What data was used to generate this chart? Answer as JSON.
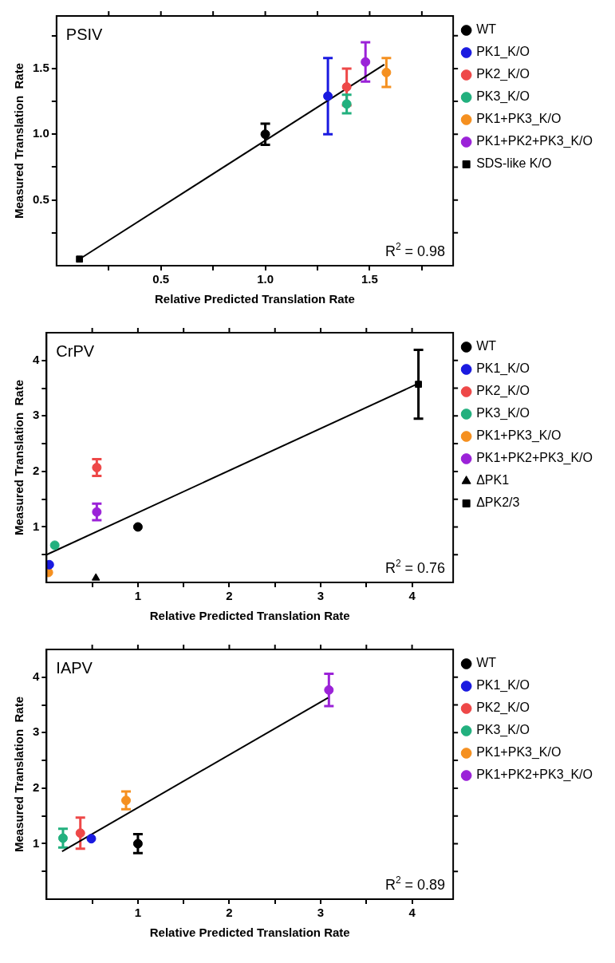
{
  "chart_data": [
    {
      "type": "scatter",
      "title": "PSIV",
      "xlabel": "Relative Predicted Translation Rate",
      "ylabel": "Measured Translation  Rate",
      "annotations": [
        "R$^{2}$ = 0.98"
      ],
      "legend": "right",
      "marker": "circle",
      "grid": false,
      "xlim": [
        0,
        1.9
      ],
      "xticks": [
        {
          "value": 0.25,
          "label": null
        },
        {
          "value": 0.5,
          "label": "0.5"
        },
        {
          "value": 0.75,
          "label": null
        },
        {
          "value": 1,
          "label": "1.0"
        },
        {
          "value": 1.25,
          "label": null
        },
        {
          "value": 1.5,
          "label": "1.5"
        },
        {
          "value": 1.75,
          "label": null
        }
      ],
      "ylim": [
        0,
        1.9
      ],
      "yticks": [
        {
          "value": 0.25,
          "label": null
        },
        {
          "value": 0.5,
          "label": "0.5"
        },
        {
          "value": 0.75,
          "label": null
        },
        {
          "value": 1,
          "label": "1.0"
        },
        {
          "value": 1.25,
          "label": null
        },
        {
          "value": 1.5,
          "label": "1.5"
        },
        {
          "value": 1.75,
          "label": null
        }
      ],
      "series": [
        {
          "name": "WT",
          "color": "#000000",
          "x": [
            1.0
          ],
          "values": [
            1.0
          ],
          "errors": [
            0.08
          ]
        },
        {
          "name": "PK1_K/O",
          "color": "#1a1ae0",
          "x": [
            1.3
          ],
          "values": [
            1.29
          ],
          "errors": [
            0.29
          ]
        },
        {
          "name": "PK2_K/O",
          "color": "#ee4848",
          "x": [
            1.39
          ],
          "values": [
            1.36
          ],
          "errors": [
            0.14
          ]
        },
        {
          "name": "PK3_K/O",
          "color": "#22b07e",
          "x": [
            1.39
          ],
          "values": [
            1.23
          ],
          "errors": [
            0.07
          ]
        },
        {
          "name": "PK1+PK3_K/O",
          "color": "#f59020",
          "x": [
            1.58
          ],
          "values": [
            1.47
          ],
          "errors": [
            0.11
          ]
        },
        {
          "name": "PK1+PK2+PK3_K/O",
          "color": "#9b22d8",
          "x": [
            1.48
          ],
          "values": [
            1.55
          ],
          "errors": [
            0.15
          ]
        },
        {
          "name": "SDS-like K/O",
          "color": "#000000",
          "x": [
            0.11
          ],
          "values": [
            0.05
          ],
          "marker": "square"
        },
        {
          "type": "line",
          "color": "#000000",
          "x": [
            0.11,
            1.57
          ],
          "values": [
            0.05,
            1.53
          ],
          "marker": "none"
        }
      ]
    },
    {
      "type": "scatter",
      "title": "CrPV",
      "xlabel": "Relative Predicted Translation Rate",
      "ylabel": "Measured Translation  Rate",
      "annotations": [
        "R$^{2}$ = 0.76"
      ],
      "legend": "right",
      "marker": "circle",
      "grid": false,
      "xlim": [
        0,
        4.45
      ],
      "xticks": [
        {
          "value": 0.5,
          "label": null
        },
        1,
        {
          "value": 1.5,
          "label": null
        },
        2,
        {
          "value": 2.5,
          "label": null
        },
        3,
        {
          "value": 3.5,
          "label": null
        },
        4
      ],
      "ylim": [
        0,
        4.5
      ],
      "yticks": [
        {
          "value": 0.5,
          "label": null
        },
        1,
        {
          "value": 1.5,
          "label": null
        },
        2,
        {
          "value": 2.5,
          "label": null
        },
        3,
        {
          "value": 3.5,
          "label": null
        },
        4
      ],
      "series": [
        {
          "name": "WT",
          "color": "#000000",
          "x": [
            1.0
          ],
          "values": [
            1.0
          ]
        },
        {
          "name": "PK1_K/O",
          "color": "#1a1ae0",
          "x": [
            0.03
          ],
          "values": [
            0.32
          ]
        },
        {
          "name": "PK2_K/O",
          "color": "#ee4848",
          "x": [
            0.55
          ],
          "values": [
            2.07
          ],
          "errors": [
            0.15
          ]
        },
        {
          "name": "PK3_K/O",
          "color": "#22b07e",
          "x": [
            0.09
          ],
          "values": [
            0.67
          ]
        },
        {
          "name": "PK1+PK3_K/O",
          "color": "#f59020",
          "x": [
            0.02
          ],
          "values": [
            0.18
          ]
        },
        {
          "name": "PK1+PK2+PK3_K/O",
          "color": "#9b22d8",
          "x": [
            0.55
          ],
          "values": [
            1.27
          ],
          "errors": [
            0.15
          ]
        },
        {
          "name": "ΔPK1",
          "color": "#000000",
          "x": [
            0.54
          ],
          "values": [
            0.08
          ],
          "marker": "triangle"
        },
        {
          "name": "ΔPK2/3",
          "color": "#000000",
          "x": [
            4.07
          ],
          "values": [
            3.57
          ],
          "errors": [
            0.62
          ],
          "marker": "square"
        },
        {
          "type": "line",
          "color": "#000000",
          "x": [
            0,
            4.05
          ],
          "values": [
            0.5,
            3.57
          ],
          "marker": "none"
        }
      ]
    },
    {
      "type": "scatter",
      "title": "IAPV",
      "xlabel": "Relative Predicted Translation Rate",
      "ylabel": "Measured Translation  Rate",
      "annotations": [
        "R$^{2}$ = 0.89"
      ],
      "legend": "right",
      "marker": "circle",
      "grid": false,
      "xlim": [
        0,
        4.45
      ],
      "xticks": [
        {
          "value": 0.5,
          "label": null
        },
        1,
        {
          "value": 1.5,
          "label": null
        },
        2,
        {
          "value": 2.5,
          "label": null
        },
        3,
        {
          "value": 3.5,
          "label": null
        },
        4
      ],
      "ylim": [
        0,
        4.5
      ],
      "yticks": [
        {
          "value": 0.5,
          "label": null
        },
        1,
        {
          "value": 1.5,
          "label": null
        },
        2,
        {
          "value": 2.5,
          "label": null
        },
        3,
        {
          "value": 3.5,
          "label": null
        },
        4
      ],
      "series": [
        {
          "name": "WT",
          "color": "#000000",
          "x": [
            1.0
          ],
          "values": [
            1.0
          ],
          "errors": [
            0.17
          ]
        },
        {
          "name": "PK1_K/O",
          "color": "#1a1ae0",
          "x": [
            0.49
          ],
          "values": [
            1.09
          ]
        },
        {
          "name": "PK2_K/O",
          "color": "#ee4848",
          "x": [
            0.37
          ],
          "values": [
            1.19
          ],
          "errors": [
            0.28
          ]
        },
        {
          "name": "PK3_K/O",
          "color": "#22b07e",
          "x": [
            0.18
          ],
          "values": [
            1.1
          ],
          "errors": [
            0.17
          ]
        },
        {
          "name": "PK1+PK3_K/O",
          "color": "#f59020",
          "x": [
            0.87
          ],
          "values": [
            1.78
          ],
          "errors": [
            0.16
          ]
        },
        {
          "name": "PK1+PK2+PK3_K/O",
          "color": "#9b22d8",
          "x": [
            3.09
          ],
          "values": [
            3.77
          ],
          "errors": [
            0.29
          ]
        },
        {
          "type": "line",
          "color": "#000000",
          "x": [
            0.17,
            3.08
          ],
          "values": [
            0.86,
            3.63
          ],
          "marker": "none"
        }
      ]
    }
  ]
}
